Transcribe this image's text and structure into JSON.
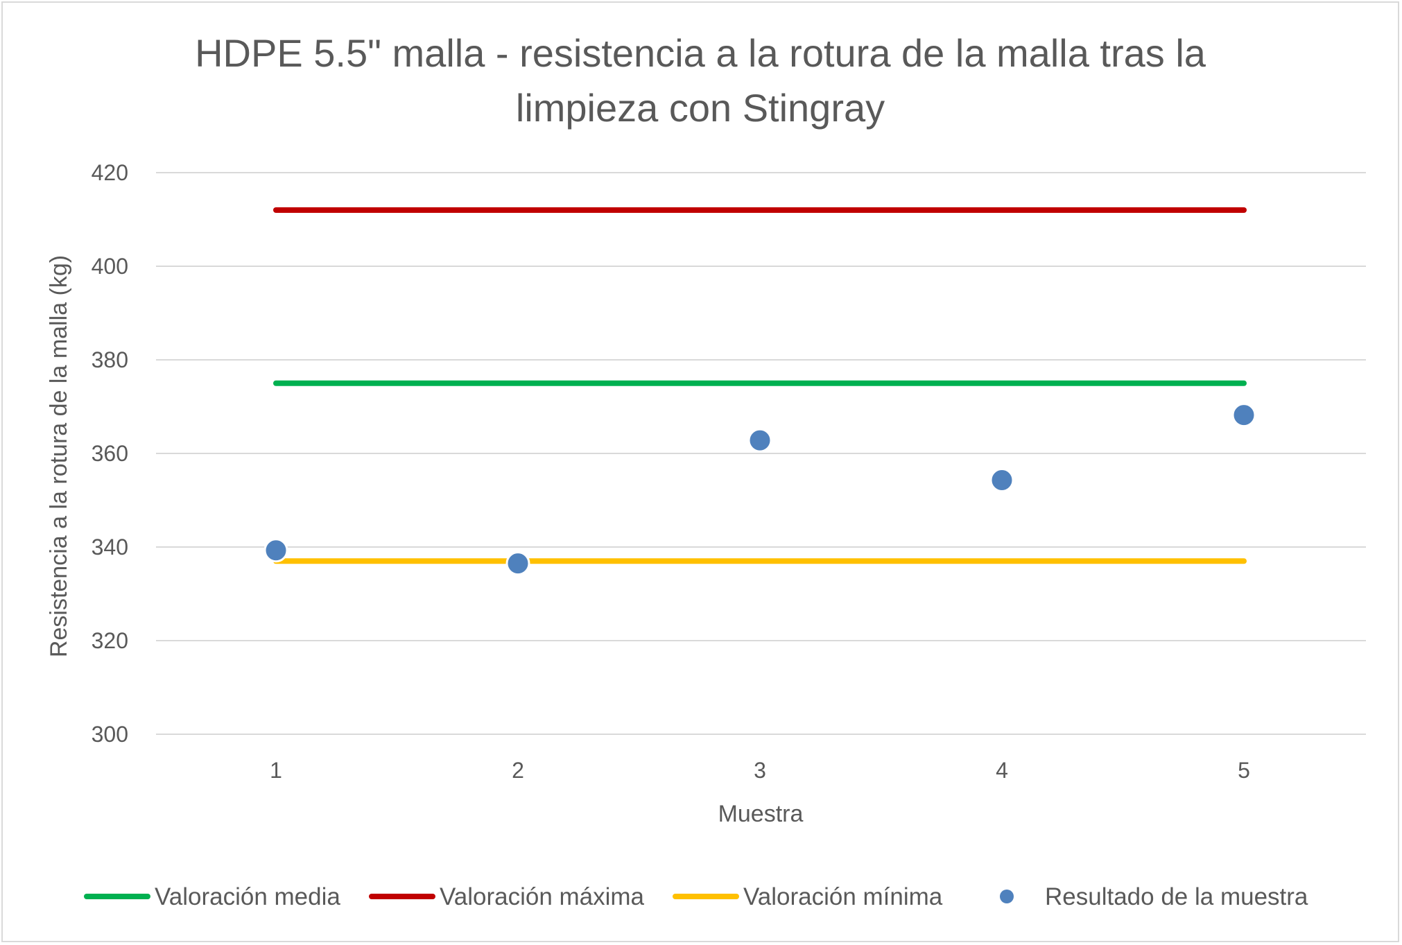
{
  "chart_data": {
    "type": "line",
    "title_lines": [
      "HDPE 5.5\" malla - resistencia a la rotura de la malla tras la",
      "limpieza con Stingray"
    ],
    "xlabel": "Muestra",
    "ylabel": "Resistencia a la rotura de la malla (kg)",
    "x": [
      1,
      2,
      3,
      4,
      5
    ],
    "x_tick_labels": [
      "1",
      "2",
      "3",
      "4",
      "5"
    ],
    "ylim": [
      300,
      420
    ],
    "y_ticks": [
      300,
      320,
      340,
      360,
      380,
      400,
      420
    ],
    "y_tick_labels": [
      "300",
      "320",
      "340",
      "360",
      "380",
      "400",
      "420"
    ],
    "grid": true,
    "legend_position": "bottom",
    "series": [
      {
        "name": "Valoración media",
        "kind": "line",
        "color": "#00b050",
        "values": [
          375,
          375,
          375,
          375,
          375
        ]
      },
      {
        "name": "Valoración máxima",
        "kind": "line",
        "color": "#c00000",
        "values": [
          412,
          412,
          412,
          412,
          412
        ]
      },
      {
        "name": "Valoración mínima",
        "kind": "line",
        "color": "#ffc000",
        "values": [
          337,
          337,
          337,
          337,
          337
        ]
      },
      {
        "name": "Resultado de la muestra",
        "kind": "scatter",
        "color": "#4f81bd",
        "values": [
          339.3,
          336.5,
          362.8,
          354.3,
          368.2
        ]
      }
    ]
  }
}
